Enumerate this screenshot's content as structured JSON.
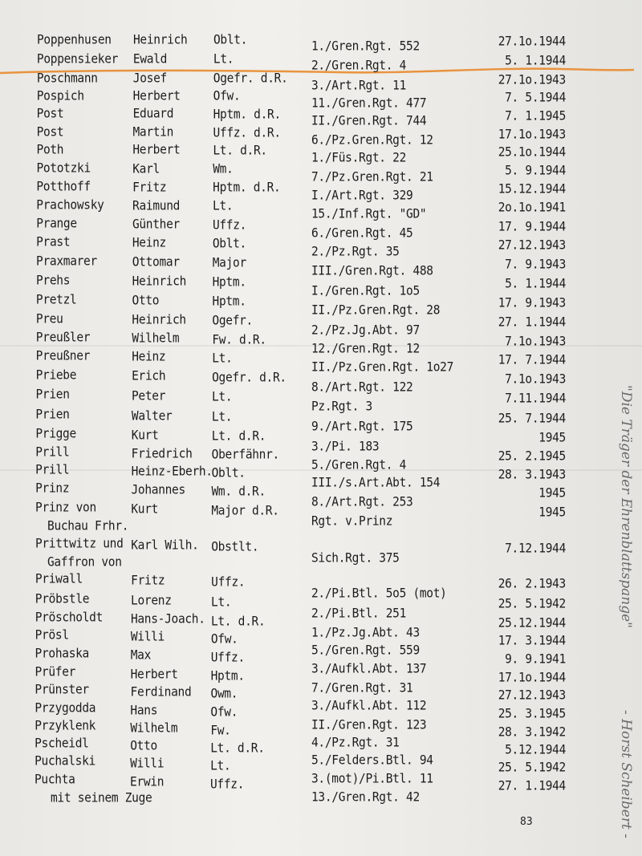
{
  "rows": [
    {
      "surname": "Poppenhusen",
      "first": "Heinrich",
      "rank": "Oblt.",
      "unit": "1./Gren.Rgt. 552",
      "date": "27.1o.1944"
    },
    {
      "surname": "Poppensieker",
      "first": "Ewald",
      "rank": "Lt.",
      "unit": "2./Gren.Rgt. 4",
      "date": "5. 1.1944"
    },
    {
      "surname": "Poschmann",
      "first": "Josef",
      "rank": "Ogefr. d.R.",
      "unit": "3./Art.Rgt. 11",
      "date": "27.1o.1943"
    },
    {
      "surname": "Pospich",
      "first": "Herbert",
      "rank": "Ofw.",
      "unit": "11./Gren.Rgt. 477",
      "date": "7. 5.1944"
    },
    {
      "surname": "Post",
      "first": "Eduard",
      "rank": "Hptm. d.R.",
      "unit": "II./Gren.Rgt. 744",
      "date": "7. 1.1945"
    },
    {
      "surname": "Post",
      "first": "Martin",
      "rank": "Uffz. d.R.",
      "unit": "6./Pz.Gren.Rgt. 12",
      "date": "17.1o.1943"
    },
    {
      "surname": "Poth",
      "first": "Herbert",
      "rank": "Lt. d.R.",
      "unit": "1./Füs.Rgt. 22",
      "date": "25.1o.1944"
    },
    {
      "surname": "Pototzki",
      "first": "Karl",
      "rank": "Wm.",
      "unit": "7./Pz.Gren.Rgt. 21",
      "date": "5. 9.1944"
    },
    {
      "surname": "Potthoff",
      "first": "Fritz",
      "rank": "Hptm. d.R.",
      "unit": "I./Art.Rgt. 329",
      "date": "15.12.1944"
    },
    {
      "surname": "Prachowsky",
      "first": "Raimund",
      "rank": "Lt.",
      "unit": "15./Inf.Rgt. \"GD\"",
      "date": "2o.1o.1941"
    },
    {
      "surname": "Prange",
      "first": "Günther",
      "rank": "Uffz.",
      "unit": "6./Gren.Rgt. 45",
      "date": "17. 9.1944"
    },
    {
      "surname": "Prast",
      "first": "Heinz",
      "rank": "Oblt.",
      "unit": "2./Pz.Rgt. 35",
      "date": "27.12.1943"
    },
    {
      "surname": "Praxmarer",
      "first": "Ottomar",
      "rank": "Major",
      "unit": "III./Gren.Rgt. 488",
      "date": "7. 9.1943"
    },
    {
      "surname": "Prehs",
      "first": "Heinrich",
      "rank": "Hptm.",
      "unit": "I./Gren.Rgt. 1o5",
      "date": "5. 1.1944"
    },
    {
      "surname": "Pretzl",
      "first": "Otto",
      "rank": "Hptm.",
      "unit": "II./Pz.Gren.Rgt. 28",
      "date": "17. 9.1943"
    },
    {
      "surname": "Preu",
      "first": "Heinrich",
      "rank": "Ogefr.",
      "unit": "2./Pz.Jg.Abt. 97",
      "date": "27. 1.1944"
    },
    {
      "surname": "Preußler",
      "first": "Wilhelm",
      "rank": "Fw. d.R.",
      "unit": "12./Gren.Rgt. 12",
      "date": "7.1o.1943"
    },
    {
      "surname": "Preußner",
      "first": "Heinz",
      "rank": "Lt.",
      "unit": "II./Pz.Gren.Rgt. 1o27",
      "date": "17. 7.1944"
    },
    {
      "surname": "Priebe",
      "first": "Erich",
      "rank": "Ogefr. d.R.",
      "unit": "8./Art.Rgt. 122",
      "date": "7.1o.1943"
    },
    {
      "surname": "Prien",
      "first": "Peter",
      "rank": "Lt.",
      "unit": "Pz.Rgt. 3",
      "date": "7.11.1944"
    },
    {
      "surname": "Prien",
      "first": "Walter",
      "rank": "Lt.",
      "unit": "9./Art.Rgt. 175",
      "date": "25. 7.1944"
    },
    {
      "surname": "Prigge",
      "first": "Kurt",
      "rank": "Lt. d.R.",
      "unit": "3./Pi. 183",
      "date": "1945"
    },
    {
      "surname": "Prill",
      "first": "Friedrich",
      "rank": "Oberfähnr.",
      "unit": "5./Gren.Rgt. 4",
      "date": "25. 2.1945"
    },
    {
      "surname": "Prill",
      "first": "Heinz-Eberh.",
      "rank": "Oblt.",
      "unit": "III./s.Art.Abt. 154",
      "date": "28. 3.1943"
    },
    {
      "surname": "Prinz",
      "first": "Johannes",
      "rank": "Wm. d.R.",
      "unit": "8./Art.Rgt. 253",
      "date": "1945"
    },
    {
      "surname": "Prinz von",
      "surname2": "Buchau Frhr.",
      "first": "Kurt",
      "rank": "Major d.R.",
      "unit": "Rgt. v.Prinz",
      "date": "1945"
    },
    {
      "surname": "Prittwitz und",
      "surname2": "Gaffron von",
      "first": "Karl Wilh.",
      "rank": "Obstlt.",
      "unit": "Sich.Rgt. 375",
      "date": "7.12.1944"
    },
    {
      "surname": "Priwall",
      "first": "Fritz",
      "rank": "Uffz.",
      "unit": "2./Pi.Btl. 5o5 (mot)",
      "date": "26. 2.1943"
    },
    {
      "surname": "Pröbstle",
      "first": "Lorenz",
      "rank": "Lt.",
      "unit": "2./Pi.Btl. 251",
      "date": "25. 5.1942"
    },
    {
      "surname": "Pröscholdt",
      "first": "Hans-Joach.",
      "rank": "Lt. d.R.",
      "unit": "1./Pz.Jg.Abt. 43",
      "date": "25.12.1944"
    },
    {
      "surname": "Prösl",
      "first": "Willi",
      "rank": "Ofw.",
      "unit": "5./Gren.Rgt. 559",
      "date": "17. 3.1944"
    },
    {
      "surname": "Prohaska",
      "first": "Max",
      "rank": "Uffz.",
      "unit": "3./Aufkl.Abt. 137",
      "date": "9. 9.1941"
    },
    {
      "surname": "Prüfer",
      "first": "Herbert",
      "rank": "Hptm.",
      "unit": "7./Gren.Rgt. 31",
      "date": "17.1o.1944"
    },
    {
      "surname": "Prünster",
      "first": "Ferdinand",
      "rank": "Owm.",
      "unit": "3./Aufkl.Abt. 112",
      "date": "27.12.1943"
    },
    {
      "surname": "Przygodda",
      "first": "Hans",
      "rank": "Ofw.",
      "unit": "II./Gren.Rgt. 123",
      "date": "25. 3.1945"
    },
    {
      "surname": "Przyklenk",
      "first": "Wilhelm",
      "rank": "Fw.",
      "unit": "4./Pz.Rgt. 31",
      "date": "28. 3.1942"
    },
    {
      "surname": "Pscheidl",
      "first": "Otto",
      "rank": "Lt. d.R.",
      "unit": "5./Felders.Btl. 94",
      "date": "5.12.1944"
    },
    {
      "surname": "Puchalski",
      "first": "Willi",
      "rank": "Lt.",
      "unit": "3.(mot)/Pi.Btl. 11",
      "date": "25. 5.1942"
    },
    {
      "surname": "Puchta",
      "surname2": "mit seinem Zuge",
      "first": "Erwin",
      "rank": "Uffz.",
      "unit": "13./Gren.Rgt. 42",
      "date": "27. 1.1944"
    }
  ],
  "page_number": "83",
  "handwriting": {
    "title": "\"Die Träger der Ehrenblattspange\"",
    "author": "- Horst Scheibert -"
  },
  "colors": {
    "highlight_line": "#e8892c",
    "ink": "#1c1c1c",
    "pencil": "#6a6a6a"
  }
}
